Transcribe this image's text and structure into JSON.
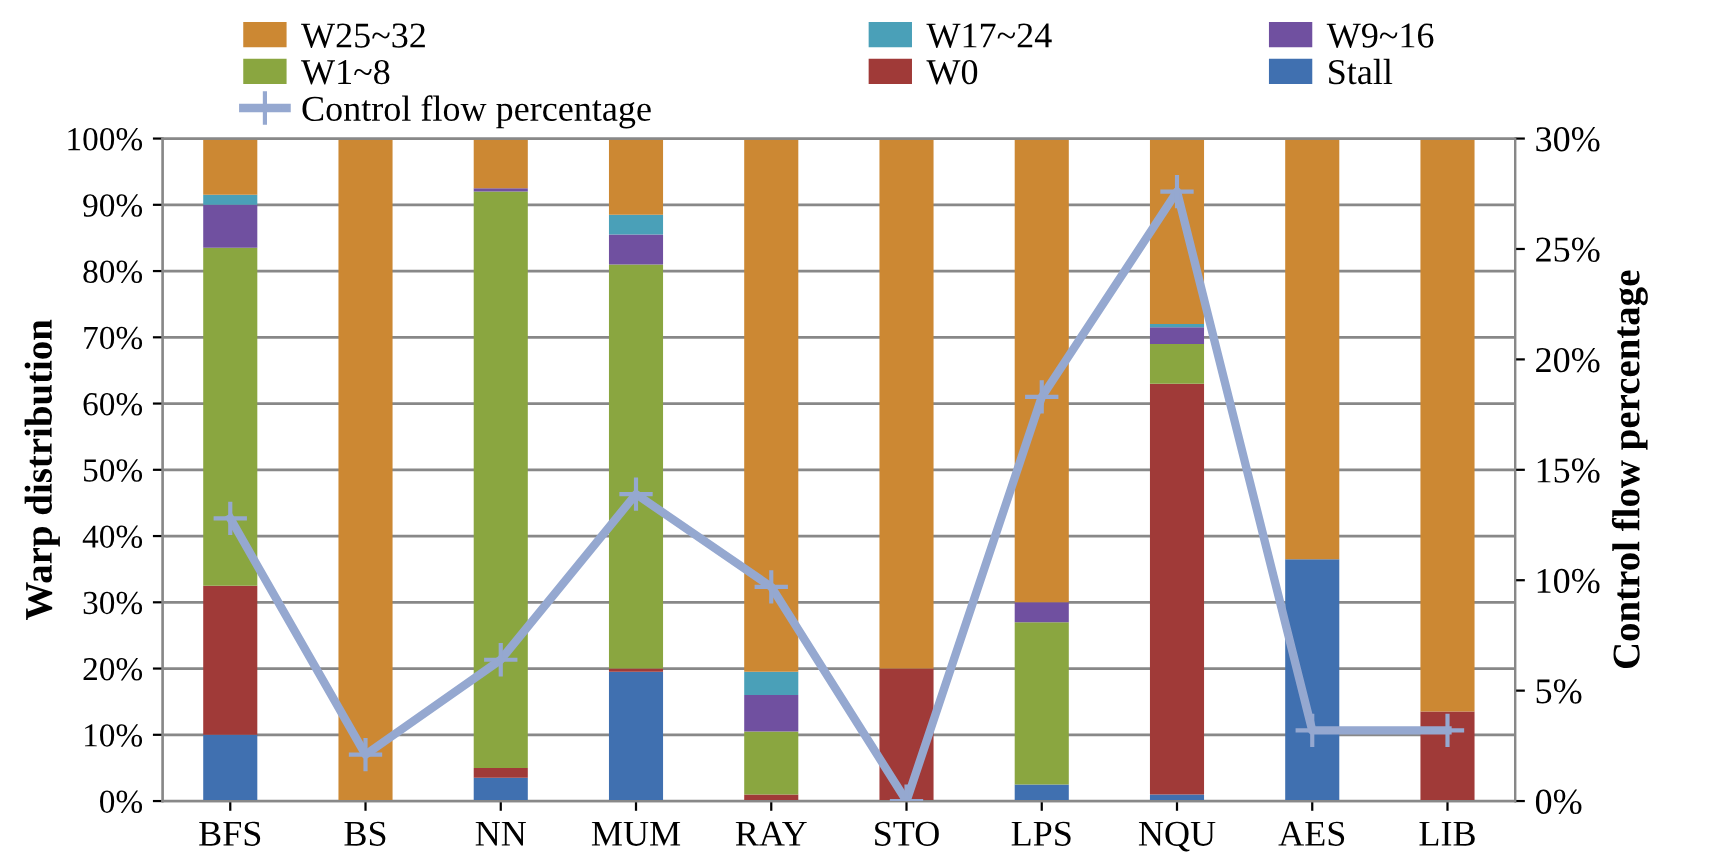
{
  "chart_data": {
    "type": "bar",
    "stacked": true,
    "categories": [
      "BFS",
      "BS",
      "NN",
      "MUM",
      "RAY",
      "STO",
      "LPS",
      "NQU",
      "AES",
      "LIB"
    ],
    "ylabel": "Warp distribution",
    "y2label": "Control flow percentage",
    "ylim": [
      0,
      100
    ],
    "yticks": [
      {
        "value": 0,
        "label": "0%"
      },
      {
        "value": 10,
        "label": "10%"
      },
      {
        "value": 20,
        "label": "20%"
      },
      {
        "value": 30,
        "label": "30%"
      },
      {
        "value": 40,
        "label": "40%"
      },
      {
        "value": 50,
        "label": "50%"
      },
      {
        "value": 60,
        "label": "60%"
      },
      {
        "value": 70,
        "label": "70%"
      },
      {
        "value": 80,
        "label": "80%"
      },
      {
        "value": 90,
        "label": "90%"
      },
      {
        "value": 100,
        "label": "100%"
      }
    ],
    "y2lim": [
      0,
      30
    ],
    "y2ticks": [
      {
        "value": 0,
        "label": "0%"
      },
      {
        "value": 5,
        "label": "5%"
      },
      {
        "value": 10,
        "label": "10%"
      },
      {
        "value": 15,
        "label": "15%"
      },
      {
        "value": 20,
        "label": "20%"
      },
      {
        "value": 25,
        "label": "25%"
      },
      {
        "value": 30,
        "label": "30%"
      }
    ],
    "grid": "y",
    "legend": "top",
    "series": [
      {
        "name": "Stall",
        "color": "#4070b0",
        "values": [
          10,
          0,
          3.5,
          19.5,
          null,
          0,
          2.5,
          1,
          36.5,
          0
        ]
      },
      {
        "name": "W0",
        "color": "#a03a38",
        "values": [
          22.5,
          0,
          1.5,
          0.5,
          1,
          20,
          0,
          62,
          0,
          13.5
        ]
      },
      {
        "name": "W1~8",
        "color": "#8aa640",
        "values": [
          51,
          0,
          87,
          61,
          9.5,
          0,
          24.5,
          6,
          0,
          0
        ]
      },
      {
        "name": "W9~16",
        "color": "#7050a0",
        "values": [
          6.5,
          0,
          0.5,
          4.5,
          5.5,
          0,
          3,
          2.5,
          0,
          0
        ]
      },
      {
        "name": "W17~24",
        "color": "#4aa0b8",
        "values": [
          1.5,
          0,
          0,
          3,
          3.5,
          0,
          0,
          0.5,
          0,
          0
        ]
      },
      {
        "name": "W25~32",
        "color": "#cc8833",
        "values": [
          8.5,
          100,
          7.5,
          11.5,
          80.5,
          80,
          70,
          28,
          63.5,
          86.5
        ]
      },
      {
        "name": "Control flow percentage",
        "type": "line",
        "axis": "y2",
        "color": "#95a8d0",
        "marker": "cross",
        "values": [
          12.8,
          2.1,
          6.4,
          13.9,
          9.7,
          0,
          18.3,
          27.6,
          3.2,
          3.2
        ]
      }
    ]
  }
}
